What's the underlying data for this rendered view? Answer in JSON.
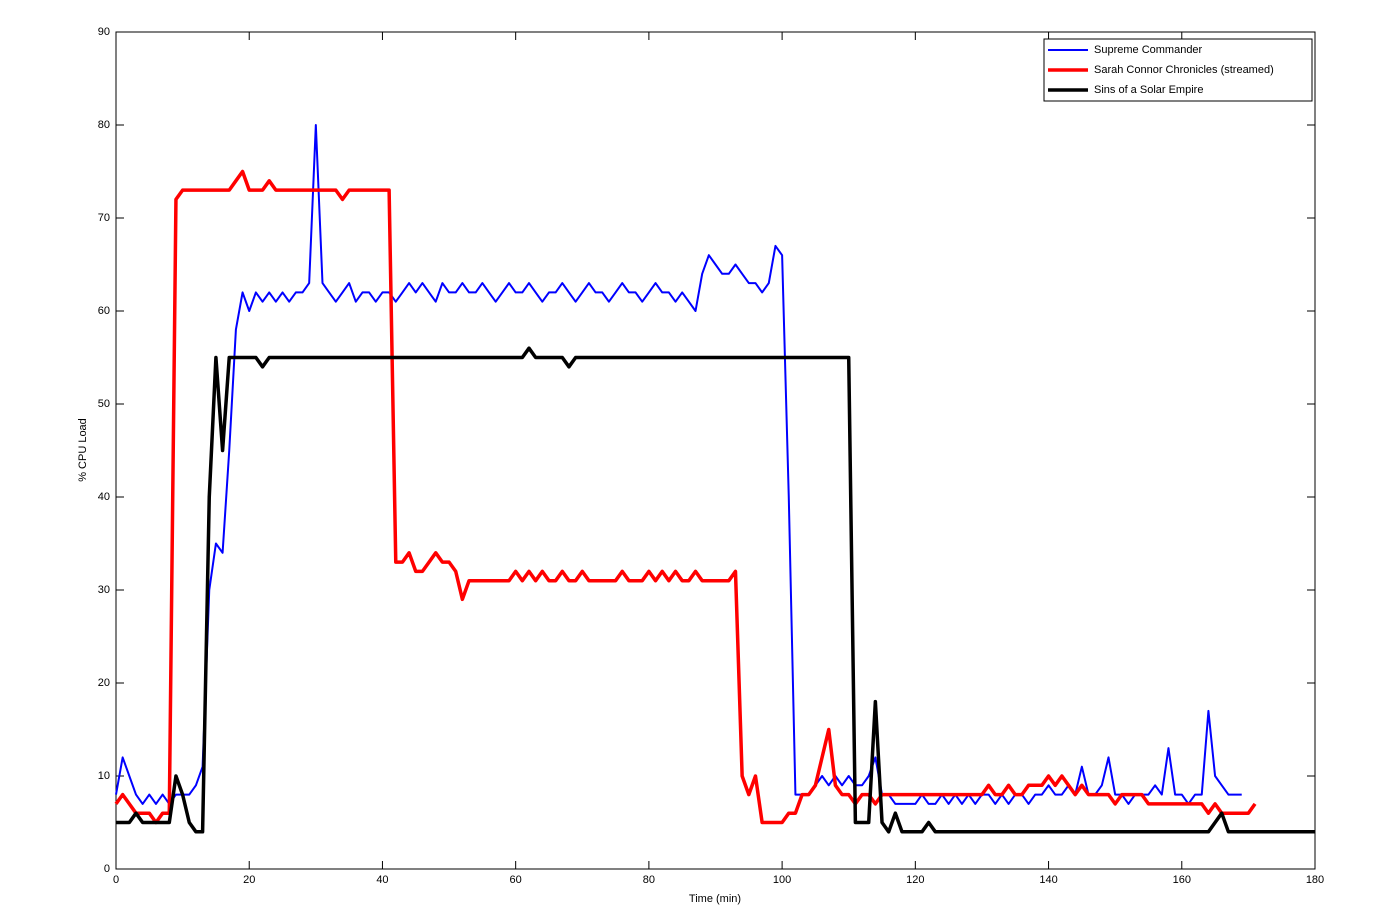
{
  "chart_data": {
    "type": "line",
    "xlabel": "Time (min)",
    "ylabel": "% CPU Load",
    "x": [
      0,
      1,
      2,
      3,
      4,
      5,
      6,
      7,
      8,
      9,
      10,
      11,
      12,
      13,
      14,
      15,
      16,
      17,
      18,
      19,
      20,
      21,
      22,
      23,
      24,
      25,
      26,
      27,
      28,
      29,
      30,
      31,
      32,
      33,
      34,
      35,
      36,
      37,
      38,
      39,
      40,
      41,
      42,
      43,
      44,
      45,
      46,
      47,
      48,
      49,
      50,
      51,
      52,
      53,
      54,
      55,
      56,
      57,
      58,
      59,
      60,
      61,
      62,
      63,
      64,
      65,
      66,
      67,
      68,
      69,
      70,
      71,
      72,
      73,
      74,
      75,
      76,
      77,
      78,
      79,
      80,
      81,
      82,
      83,
      84,
      85,
      86,
      87,
      88,
      89,
      90,
      91,
      92,
      93,
      94,
      95,
      96,
      97,
      98,
      99,
      100,
      101,
      102,
      103,
      104,
      105,
      106,
      107,
      108,
      109,
      110,
      111,
      112,
      113,
      114,
      115,
      116,
      117,
      118,
      119,
      120,
      121,
      122,
      123,
      124,
      125,
      126,
      127,
      128,
      129,
      130,
      131,
      132,
      133,
      134,
      135,
      136,
      137,
      138,
      139,
      140,
      141,
      142,
      143,
      144,
      145,
      146,
      147,
      148,
      149,
      150,
      151,
      152,
      153,
      154,
      155,
      156,
      157,
      158,
      159,
      160,
      161,
      162,
      163,
      164,
      165,
      166,
      167,
      168,
      169,
      170,
      171,
      172,
      173,
      174,
      175,
      176,
      177,
      178,
      179,
      180
    ],
    "series": [
      {
        "name": "Supreme Commander",
        "color": "#0000ff",
        "width": 2,
        "values": [
          8,
          12,
          10,
          8,
          7,
          8,
          7,
          8,
          7,
          8,
          8,
          8,
          9,
          11,
          30,
          35,
          34,
          45,
          58,
          62,
          60,
          62,
          61,
          62,
          61,
          62,
          61,
          62,
          62,
          63,
          80,
          63,
          62,
          61,
          62,
          63,
          61,
          62,
          62,
          61,
          62,
          62,
          61,
          62,
          63,
          62,
          63,
          62,
          61,
          63,
          62,
          62,
          63,
          62,
          62,
          63,
          62,
          61,
          62,
          63,
          62,
          62,
          63,
          62,
          61,
          62,
          62,
          63,
          62,
          61,
          62,
          63,
          62,
          62,
          61,
          62,
          63,
          62,
          62,
          61,
          62,
          63,
          62,
          62,
          61,
          62,
          61,
          60,
          64,
          66,
          65,
          64,
          64,
          65,
          64,
          63,
          63,
          62,
          63,
          67,
          66,
          40,
          8,
          8,
          8,
          9,
          10,
          9,
          10,
          9,
          10,
          9,
          9,
          10,
          12,
          8,
          8,
          7,
          7,
          7,
          7,
          8,
          7,
          7,
          8,
          7,
          8,
          7,
          8,
          7,
          8,
          8,
          7,
          8,
          7,
          8,
          8,
          7,
          8,
          8,
          9,
          8,
          8,
          9,
          8,
          11,
          8,
          8,
          9,
          12,
          8,
          8,
          7,
          8,
          8,
          8,
          9,
          8,
          13,
          8,
          8,
          7,
          8,
          8,
          17,
          10,
          9,
          8,
          8,
          8,
          null,
          null,
          null,
          null,
          null,
          null,
          null,
          null,
          null,
          null,
          null
        ]
      },
      {
        "name": "Sarah Connor Chronicles (streamed)",
        "color": "#ff0000",
        "width": 3.5,
        "values": [
          7,
          8,
          7,
          6,
          6,
          6,
          5,
          6,
          6,
          72,
          73,
          73,
          73,
          73,
          73,
          73,
          73,
          73,
          74,
          75,
          73,
          73,
          73,
          74,
          73,
          73,
          73,
          73,
          73,
          73,
          73,
          73,
          73,
          73,
          72,
          73,
          73,
          73,
          73,
          73,
          73,
          73,
          33,
          33,
          34,
          32,
          32,
          33,
          34,
          33,
          33,
          32,
          29,
          31,
          31,
          31,
          31,
          31,
          31,
          31,
          32,
          31,
          32,
          31,
          32,
          31,
          31,
          32,
          31,
          31,
          32,
          31,
          31,
          31,
          31,
          31,
          32,
          31,
          31,
          31,
          32,
          31,
          32,
          31,
          32,
          31,
          31,
          32,
          31,
          31,
          31,
          31,
          31,
          32,
          10,
          8,
          10,
          5,
          5,
          5,
          5,
          6,
          6,
          8,
          8,
          9,
          12,
          15,
          9,
          8,
          8,
          7,
          8,
          8,
          7,
          8,
          8,
          8,
          8,
          8,
          8,
          8,
          8,
          8,
          8,
          8,
          8,
          8,
          8,
          8,
          8,
          9,
          8,
          8,
          9,
          8,
          8,
          9,
          9,
          9,
          10,
          9,
          10,
          9,
          8,
          9,
          8,
          8,
          8,
          8,
          7,
          8,
          8,
          8,
          8,
          7,
          7,
          7,
          7,
          7,
          7,
          7,
          7,
          7,
          6,
          7,
          6,
          6,
          6,
          6,
          6,
          7,
          null,
          null,
          null,
          null,
          null,
          null,
          null,
          null,
          null
        ]
      },
      {
        "name": "Sins of a Solar Empire",
        "color": "#000000",
        "width": 3.5,
        "values": [
          5,
          5,
          5,
          6,
          5,
          5,
          5,
          5,
          5,
          10,
          8,
          5,
          4,
          4,
          40,
          55,
          45,
          55,
          55,
          55,
          55,
          55,
          54,
          55,
          55,
          55,
          55,
          55,
          55,
          55,
          55,
          55,
          55,
          55,
          55,
          55,
          55,
          55,
          55,
          55,
          55,
          55,
          55,
          55,
          55,
          55,
          55,
          55,
          55,
          55,
          55,
          55,
          55,
          55,
          55,
          55,
          55,
          55,
          55,
          55,
          55,
          55,
          56,
          55,
          55,
          55,
          55,
          55,
          54,
          55,
          55,
          55,
          55,
          55,
          55,
          55,
          55,
          55,
          55,
          55,
          55,
          55,
          55,
          55,
          55,
          55,
          55,
          55,
          55,
          55,
          55,
          55,
          55,
          55,
          55,
          55,
          55,
          55,
          55,
          55,
          55,
          55,
          55,
          55,
          55,
          55,
          55,
          55,
          55,
          55,
          55,
          5,
          5,
          5,
          18,
          5,
          4,
          6,
          4,
          4,
          4,
          4,
          5,
          4,
          4,
          4,
          4,
          4,
          4,
          4,
          4,
          4,
          4,
          4,
          4,
          4,
          4,
          4,
          4,
          4,
          4,
          4,
          4,
          4,
          4,
          4,
          4,
          4,
          4,
          4,
          4,
          4,
          4,
          4,
          4,
          4,
          4,
          4,
          4,
          4,
          4,
          4,
          4,
          4,
          4,
          5,
          6,
          4,
          4,
          4,
          4,
          4,
          4,
          4,
          4,
          4,
          4,
          4,
          4,
          4,
          4
        ]
      }
    ],
    "xlim": [
      0,
      180
    ],
    "xticks": [
      0,
      20,
      40,
      60,
      80,
      100,
      120,
      140,
      160,
      180
    ],
    "ylim": [
      0,
      90
    ],
    "yticks": [
      0,
      10,
      20,
      30,
      40,
      50,
      60,
      70,
      80,
      90
    ],
    "grid": false,
    "legend": "top-right"
  }
}
